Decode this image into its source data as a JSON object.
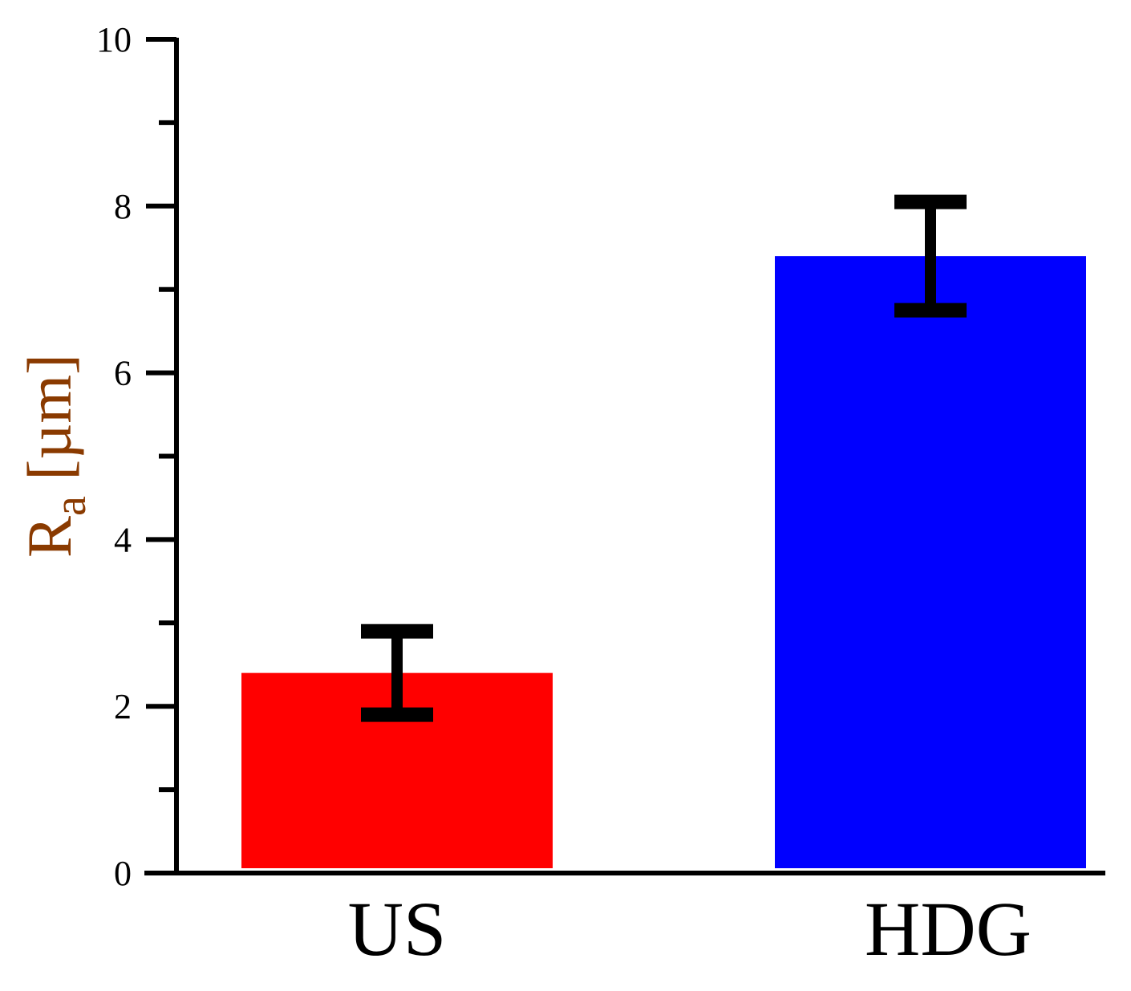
{
  "chart_data": {
    "type": "bar",
    "categories": [
      "US",
      "HDG"
    ],
    "values": [
      2.4,
      7.4
    ],
    "errors": [
      0.5,
      0.65
    ],
    "colors": [
      "#ff0000",
      "#0000ff"
    ],
    "error_color": "#000000",
    "axis_color": "#000000",
    "ylabel_color": "#8a3a00",
    "title": "",
    "xlabel": "",
    "ylabel": {
      "main": "R",
      "sub": "a",
      "unit": " [µm]"
    },
    "ylim": [
      0,
      10
    ],
    "yticks_major": [
      0,
      2,
      4,
      6,
      8,
      10
    ],
    "ytick_labels": [
      "0",
      "2",
      "4",
      "6",
      "8",
      "10"
    ],
    "yticks_minor": [
      1,
      3,
      5,
      7,
      9
    ],
    "grid": false,
    "legend": "none"
  }
}
